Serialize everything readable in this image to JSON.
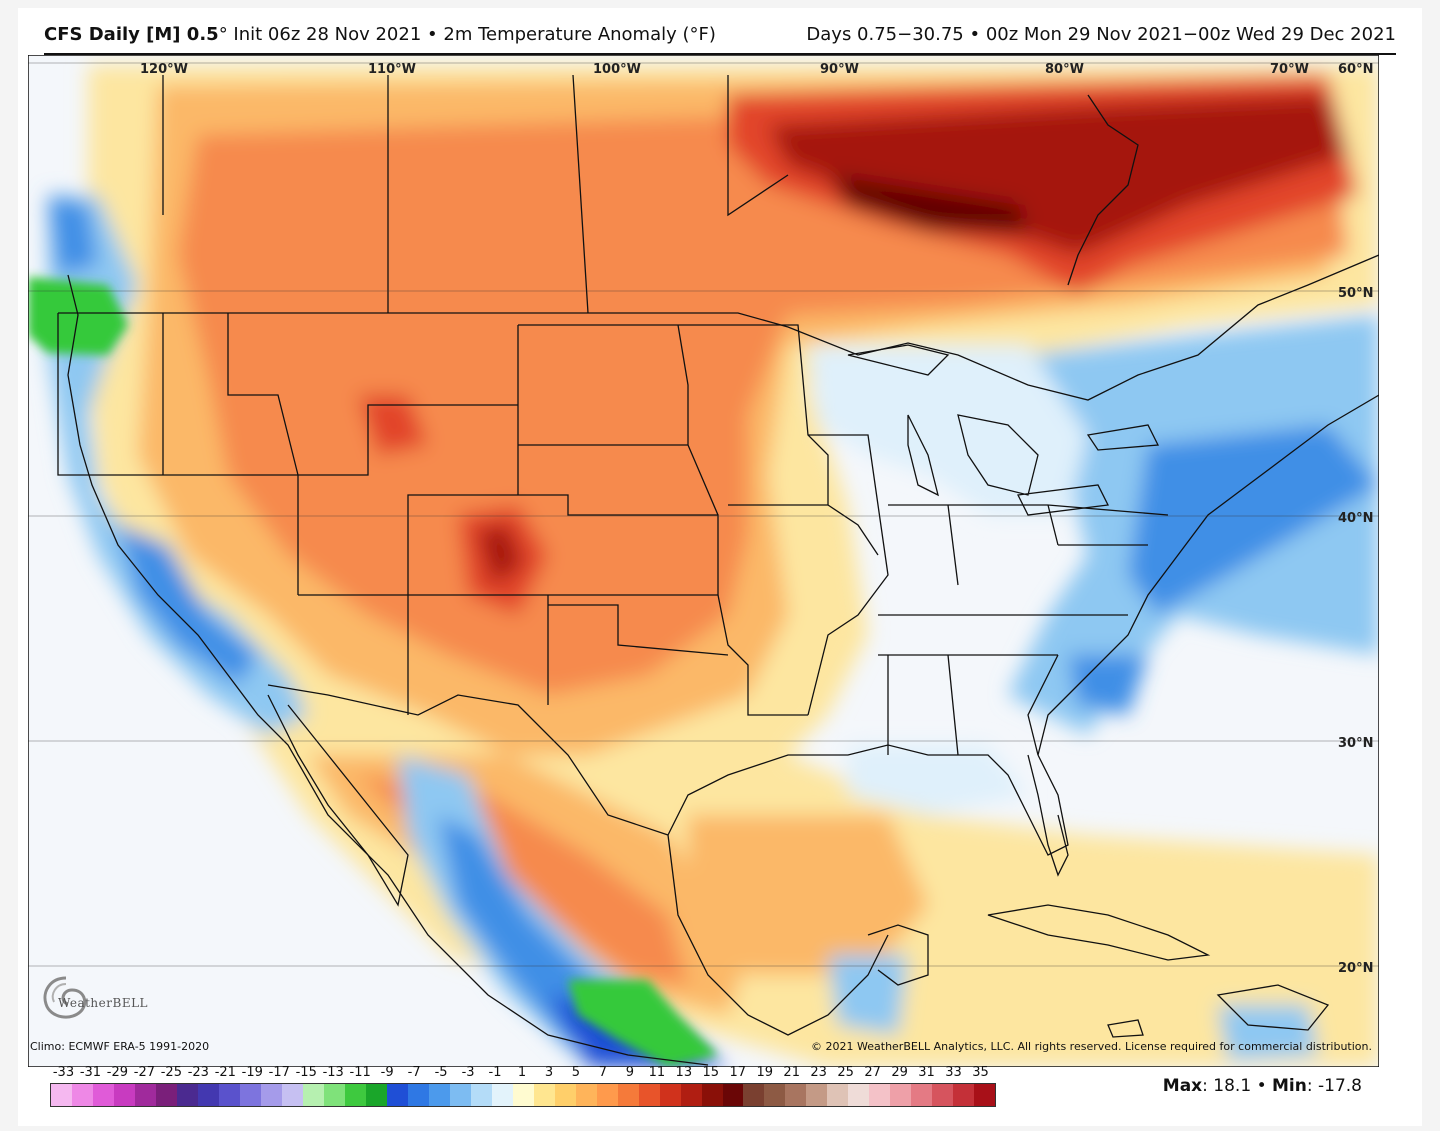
{
  "header": {
    "model": "CFS Daily [M] 0.5",
    "deg_mark": "°",
    "init": "Init 06z 28 Nov 2021",
    "sep": "•",
    "variable": "2m Temperature Anomaly (°F)",
    "days": "Days 0.75−30.75",
    "valid": "00z Mon 29 Nov 2021−00z Wed 29 Dec 2021"
  },
  "map": {
    "lon_labels": [
      "120°W",
      "110°W",
      "100°W",
      "90°W",
      "80°W",
      "70°W",
      "60°N"
    ],
    "lat_labels": [
      "50°N",
      "40°N",
      "30°N",
      "20°N"
    ]
  },
  "footer": {
    "climo": "Climo: ECMWF ERA-5 1991-2020",
    "copyright": "© 2021 WeatherBELL Analytics, LLC. All rights reserved. License required for commercial distribution.",
    "logo_text": "WeatherBELL",
    "max_label": "Max",
    "max_value": "18.1",
    "min_label": "Min",
    "min_value": "-17.8",
    "sep": "•"
  },
  "scale": {
    "labels": [
      "-33",
      "-31",
      "-29",
      "-27",
      "-25",
      "-23",
      "-21",
      "-19",
      "-17",
      "-15",
      "-13",
      "-11",
      "-9",
      "-7",
      "-5",
      "-3",
      "-1",
      "1",
      "3",
      "5",
      "7",
      "9",
      "11",
      "13",
      "15",
      "17",
      "19",
      "21",
      "23",
      "25",
      "27",
      "29",
      "31",
      "33",
      "35"
    ],
    "colors": [
      "#f5b8f0",
      "#ee88e6",
      "#e05bd8",
      "#c83bc0",
      "#a02a9c",
      "#7a1f7a",
      "#4b2a90",
      "#4338b0",
      "#5a52cc",
      "#7d74de",
      "#a59bea",
      "#c6c0f2",
      "#b6f0b0",
      "#7fe27a",
      "#3ec93f",
      "#1aa62a",
      "#1f4fd6",
      "#2f78e4",
      "#4c9aec",
      "#7dbcf2",
      "#b4dcf8",
      "#e3f3fb",
      "#fffbd0",
      "#ffe690",
      "#ffcf6a",
      "#ffb45a",
      "#ff9a4c",
      "#f57a3a",
      "#e8542a",
      "#d0321c",
      "#b01e12",
      "#8a1008",
      "#6a0606",
      "#7a4030",
      "#8d5a44",
      "#a87560",
      "#c49a86",
      "#dfc3b6",
      "#efdcd8",
      "#f4c2c8",
      "#eea0a8",
      "#e47a84",
      "#d6545e",
      "#c43038",
      "#a81018"
    ]
  },
  "colors": {
    "warm_light": "#fde6a0",
    "warm_mid": "#fbb867",
    "warm": "#f68a4e",
    "hot": "#e2452a",
    "very_hot": "#a5150c",
    "extreme": "#5e0303",
    "cool_light": "#dff0fb",
    "cool": "#8ec8f2",
    "cold": "#3f8fe6",
    "very_cold": "#1f4fd6",
    "green": "#35c93a",
    "neutral": "#f4f7fb"
  }
}
